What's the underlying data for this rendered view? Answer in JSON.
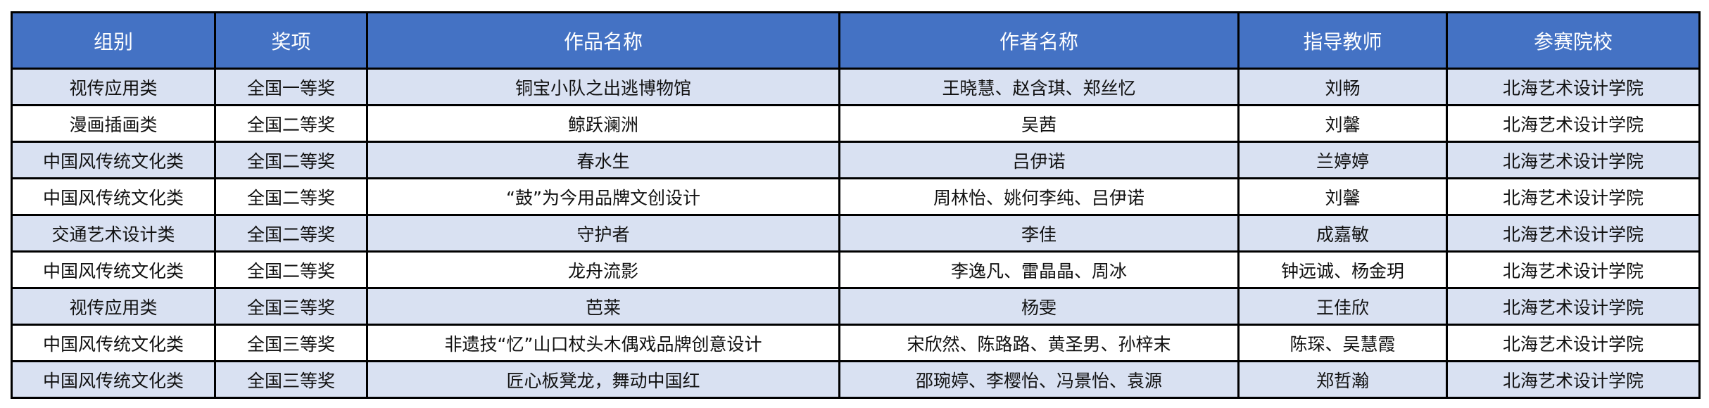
{
  "colors": {
    "header_bg": "#4472C4",
    "header_text": "#FFFFFF",
    "alt_row_bg": "#D9E1F2",
    "row_bg": "#FFFFFF"
  },
  "table": {
    "headers": [
      "组别",
      "奖项",
      "作品名称",
      "作者名称",
      "指导教师",
      "参赛院校"
    ],
    "rows": [
      [
        "视传应用类",
        "全国一等奖",
        "铜宝小队之出逃博物馆",
        "王晓慧、赵含琪、郑丝忆",
        "刘畅",
        "北海艺术设计学院"
      ],
      [
        "漫画插画类",
        "全国二等奖",
        "鲸跃澜洲",
        "吴茜",
        "刘馨",
        "北海艺术设计学院"
      ],
      [
        "中国风传统文化类",
        "全国二等奖",
        "春水生",
        "吕伊诺",
        "兰婷婷",
        "北海艺术设计学院"
      ],
      [
        "中国风传统文化类",
        "全国二等奖",
        "“鼓”为今用品牌文创设计",
        "周林怡、姚何李纯、吕伊诺",
        "刘馨",
        "北海艺术设计学院"
      ],
      [
        "交通艺术设计类",
        "全国二等奖",
        "守护者",
        "李佳",
        "成嘉敏",
        "北海艺术设计学院"
      ],
      [
        "中国风传统文化类",
        "全国二等奖",
        "龙舟流影",
        "李逸凡、雷晶晶、周冰",
        "钟远诚、杨金玥",
        "北海艺术设计学院"
      ],
      [
        "视传应用类",
        "全国三等奖",
        "芭莱",
        "杨雯",
        "王佳欣",
        "北海艺术设计学院"
      ],
      [
        "中国风传统文化类",
        "全国三等奖",
        "非遗技“忆”山口杖头木偶戏品牌创意设计",
        "宋欣然、陈路路、黄圣男、孙梓末",
        "陈琛、吴慧霞",
        "北海艺术设计学院"
      ],
      [
        "中国风传统文化类",
        "全国三等奖",
        "匠心板凳龙，舞动中国红",
        "邵琬婷、李樱怡、冯景怡、袁源",
        "郑哲瀚",
        "北海艺术设计学院"
      ]
    ]
  }
}
